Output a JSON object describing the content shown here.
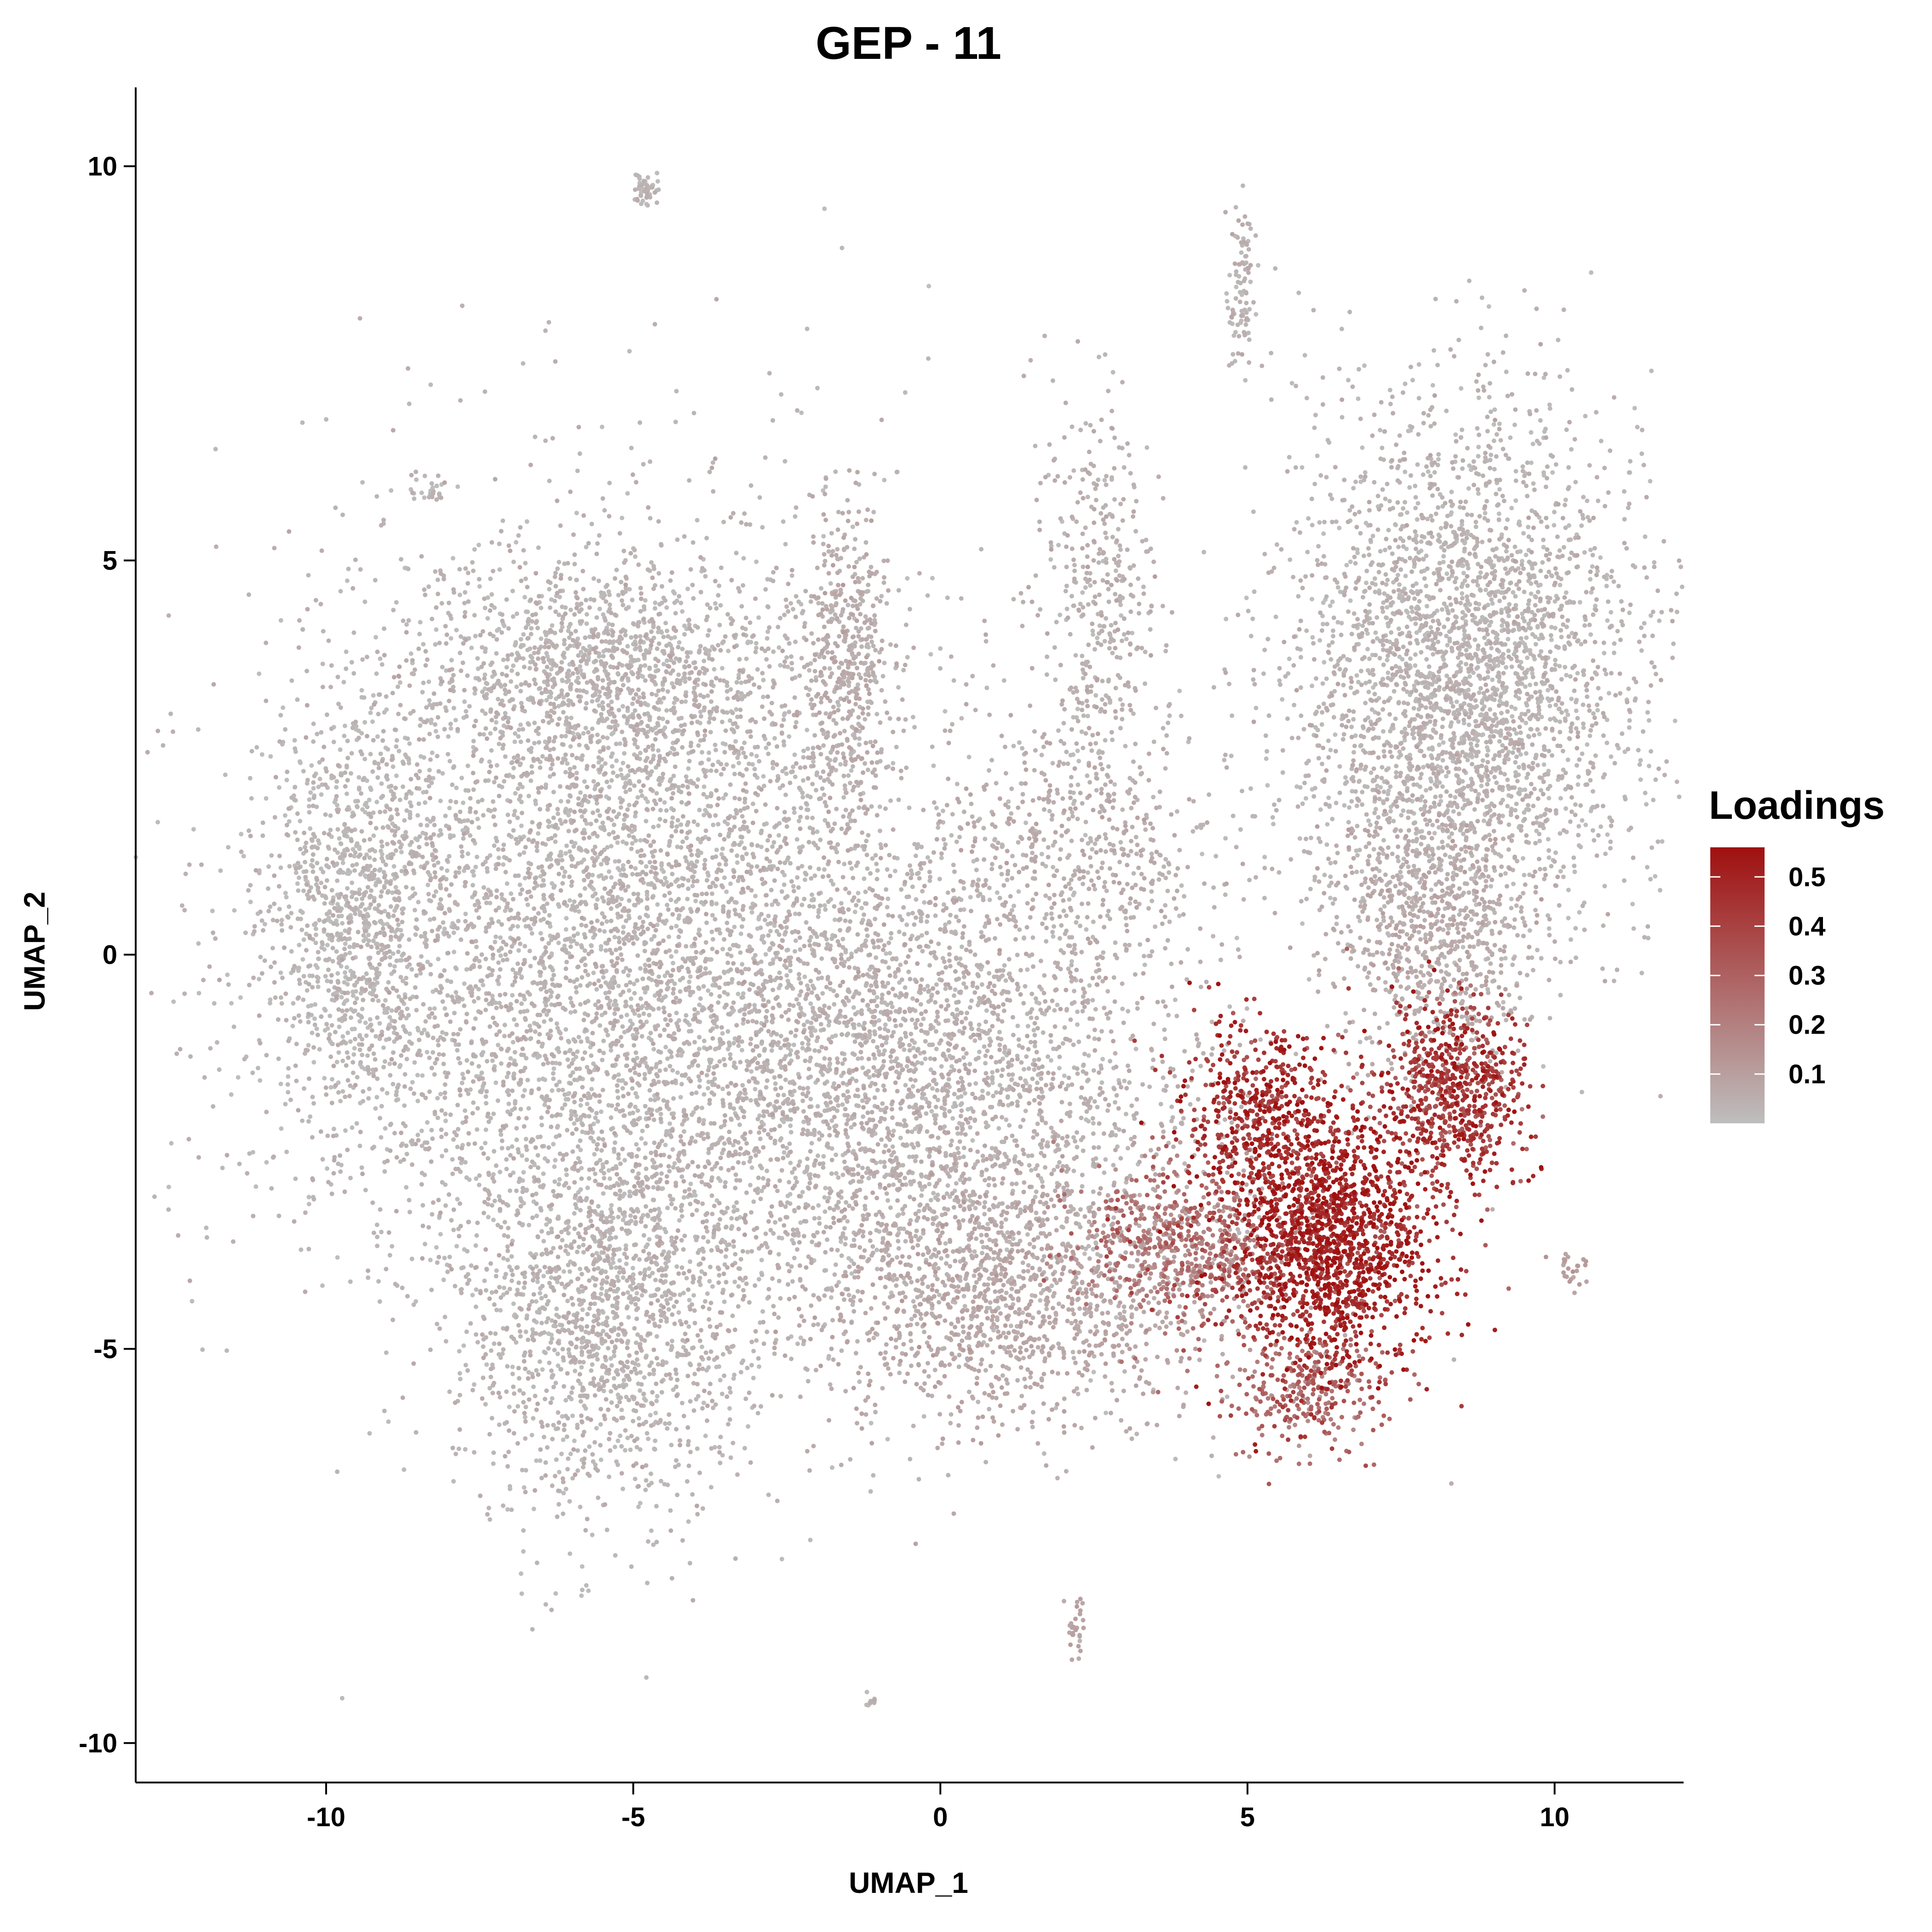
{
  "chart_data": {
    "type": "scatter",
    "title": "GEP - 11",
    "xlabel": "UMAP_1",
    "ylabel": "UMAP_2",
    "xlim": [
      -13.1,
      12.1
    ],
    "ylim": [
      -10.5,
      11.0
    ],
    "xticks": [
      -10,
      -5,
      0,
      5,
      10
    ],
    "yticks": [
      -10,
      -5,
      0,
      5,
      10
    ],
    "grid": false,
    "legend": {
      "title": "Loadings",
      "placement": "right",
      "range": [
        0,
        0.56
      ],
      "ticks": [
        0.1,
        0.2,
        0.3,
        0.4,
        0.5
      ],
      "color_low": "#bebebe",
      "color_high": "#a01010"
    },
    "point_color_default": "#bebebe",
    "clusters": [
      {
        "name": "left-main",
        "cx": -5.5,
        "cy": 0.5,
        "sx": 2.6,
        "sy": 2.4,
        "n": 5200,
        "loading": 0.03
      },
      {
        "name": "left-lower",
        "cx": -5.6,
        "cy": -4.6,
        "sx": 1.2,
        "sy": 1.3,
        "n": 1500,
        "loading": 0.03
      },
      {
        "name": "left-edge",
        "cx": -9.6,
        "cy": 0.4,
        "sx": 0.7,
        "sy": 1.3,
        "n": 900,
        "loading": 0.02
      },
      {
        "name": "upper-left-lobe",
        "cx": -5.2,
        "cy": 3.6,
        "sx": 1.5,
        "sy": 0.6,
        "n": 900,
        "loading": 0.03
      },
      {
        "name": "center-main",
        "cx": -0.5,
        "cy": -1.8,
        "sx": 2.3,
        "sy": 1.6,
        "n": 3200,
        "loading": 0.04
      },
      {
        "name": "center-lower",
        "cx": 1.2,
        "cy": -4.4,
        "sx": 1.6,
        "sy": 0.8,
        "n": 1100,
        "loading": 0.07
      },
      {
        "name": "stalk-upper-left",
        "cx": -1.5,
        "cy": 3.8,
        "sx": 0.35,
        "sy": 1.0,
        "n": 450,
        "loading": 0.05
      },
      {
        "name": "right-lobe",
        "cx": 8.5,
        "cy": 3.5,
        "sx": 1.4,
        "sy": 1.7,
        "n": 3300,
        "loading": 0.03
      },
      {
        "name": "right-lobe-stem",
        "cx": 8.0,
        "cy": 0.3,
        "sx": 0.8,
        "sy": 0.9,
        "n": 700,
        "loading": 0.06
      },
      {
        "name": "right-tail-hot",
        "cx": 8.4,
        "cy": -1.7,
        "sx": 0.6,
        "sy": 0.6,
        "n": 700,
        "loading": 0.42
      },
      {
        "name": "hotspot-main",
        "cx": 6.3,
        "cy": -3.6,
        "sx": 0.85,
        "sy": 0.8,
        "n": 1600,
        "loading": 0.48
      },
      {
        "name": "hotspot-ridge",
        "cx": 5.2,
        "cy": -2.0,
        "sx": 0.6,
        "sy": 0.6,
        "n": 450,
        "loading": 0.45
      },
      {
        "name": "warm-band",
        "cx": 4.0,
        "cy": -3.7,
        "sx": 0.9,
        "sy": 0.5,
        "n": 650,
        "loading": 0.22
      },
      {
        "name": "warm-lower",
        "cx": 6.0,
        "cy": -5.5,
        "sx": 0.7,
        "sy": 0.4,
        "n": 300,
        "loading": 0.28
      },
      {
        "name": "upper-stream",
        "cx": 2.6,
        "cy": 4.6,
        "sx": 0.5,
        "sy": 1.2,
        "n": 380,
        "loading": 0.04
      },
      {
        "name": "center-upper",
        "cx": 2.2,
        "cy": 1.5,
        "sx": 1.1,
        "sy": 0.9,
        "n": 500,
        "loading": 0.05
      },
      {
        "name": "island-top-left",
        "cx": -4.8,
        "cy": 9.7,
        "sx": 0.12,
        "sy": 0.1,
        "n": 50,
        "loading": 0.02
      },
      {
        "name": "island-top-right",
        "cx": 4.9,
        "cy": 8.4,
        "sx": 0.12,
        "sy": 0.5,
        "n": 100,
        "loading": 0.03
      },
      {
        "name": "island-left-small",
        "cx": -8.3,
        "cy": 5.9,
        "sx": 0.2,
        "sy": 0.08,
        "n": 25,
        "loading": 0.02
      },
      {
        "name": "island-bottom",
        "cx": 2.2,
        "cy": -8.5,
        "sx": 0.08,
        "sy": 0.2,
        "n": 30,
        "loading": 0.08
      },
      {
        "name": "island-bottom-small",
        "cx": -1.1,
        "cy": -9.5,
        "sx": 0.06,
        "sy": 0.05,
        "n": 10,
        "loading": 0.02
      },
      {
        "name": "island-right-small",
        "cx": 10.3,
        "cy": -4.0,
        "sx": 0.2,
        "sy": 0.12,
        "n": 25,
        "loading": 0.1
      }
    ]
  }
}
